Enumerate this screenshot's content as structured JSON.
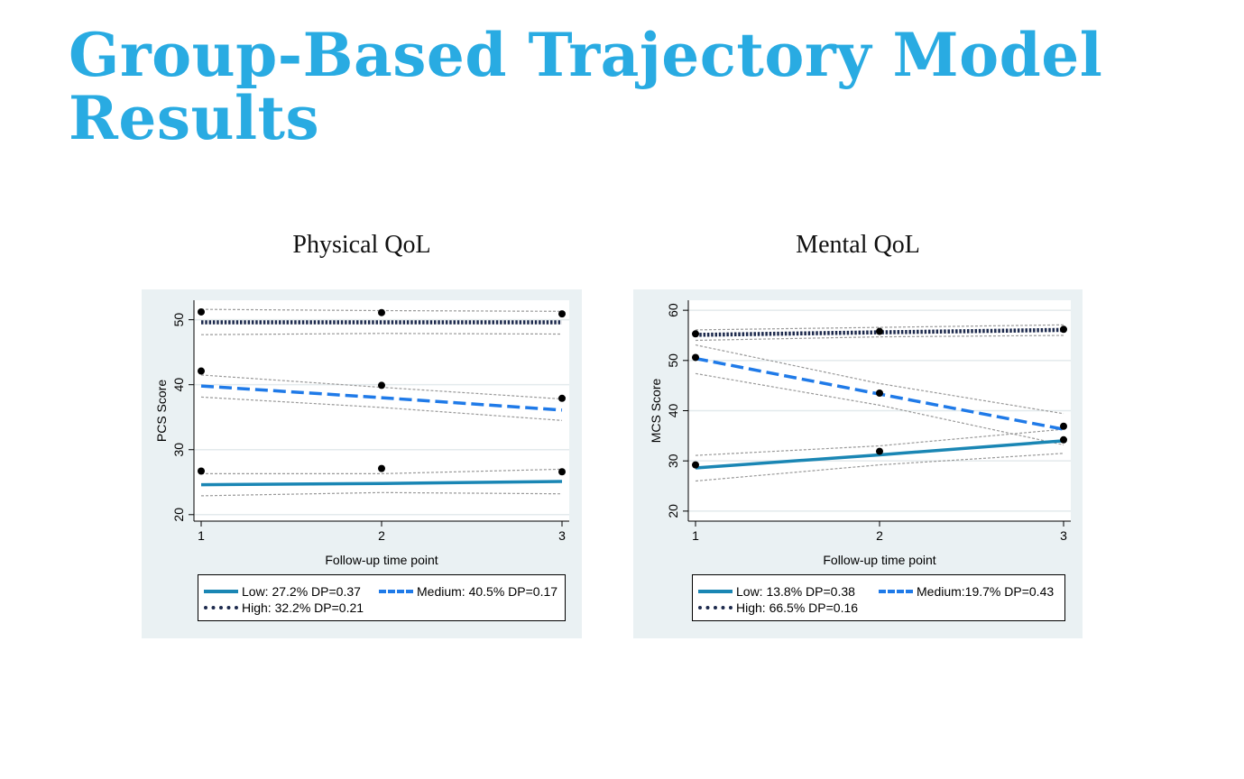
{
  "page": {
    "title": "Group-Based Trajectory Model Results"
  },
  "colors": {
    "title": "#29abe2",
    "low": "#1a86b4",
    "medium": "#1f7ae8",
    "high": "#1d2a4d",
    "ci": "#999999",
    "point": "#000000",
    "panel_bg": "#eaf1f3"
  },
  "chart_data": [
    {
      "type": "line",
      "title": "Physical QoL",
      "xlabel": "Follow-up time point",
      "ylabel": "PCS Score",
      "x": [
        1,
        2,
        3
      ],
      "xticks": [
        1,
        2,
        3
      ],
      "yticks": [
        20,
        30,
        40,
        50
      ],
      "xlim": [
        1,
        3
      ],
      "ylim": [
        19,
        53
      ],
      "grid": true,
      "legend": {
        "placement": "bottom",
        "labels": [
          "Low: 27.2% DP=0.37",
          "Medium: 40.5% DP=0.17",
          "High: 32.2% DP=0.21"
        ]
      },
      "series": [
        {
          "name": "Low: 27.2% DP=0.37",
          "style": "solid",
          "fitted": [
            24.6,
            24.8,
            25.1
          ],
          "ci_lower": [
            22.9,
            23.4,
            23.2
          ],
          "ci_upper": [
            26.3,
            26.3,
            27.0
          ],
          "observed": [
            26.7,
            27.1,
            26.6
          ]
        },
        {
          "name": "Medium: 40.5% DP=0.17",
          "style": "dashed",
          "fitted": [
            39.8,
            38.0,
            36.1
          ],
          "ci_lower": [
            38.1,
            36.5,
            34.5
          ],
          "ci_upper": [
            41.5,
            39.6,
            37.8
          ],
          "observed": [
            42.1,
            39.9,
            37.9
          ]
        },
        {
          "name": "High: 32.2% DP=0.21",
          "style": "dotted",
          "fitted": [
            49.6,
            49.6,
            49.6
          ],
          "ci_lower": [
            47.7,
            47.9,
            47.8
          ],
          "ci_upper": [
            51.6,
            51.4,
            51.3
          ],
          "observed": [
            51.2,
            51.1,
            50.9
          ]
        }
      ]
    },
    {
      "type": "line",
      "title": "Mental QoL",
      "xlabel": "Follow-up time point",
      "ylabel": "MCS Score",
      "x": [
        1,
        2,
        3
      ],
      "xticks": [
        1,
        2,
        3
      ],
      "yticks": [
        20,
        30,
        40,
        50,
        60
      ],
      "xlim": [
        1,
        3
      ],
      "ylim": [
        18,
        62
      ],
      "grid": true,
      "legend": {
        "placement": "bottom",
        "labels": [
          "Low: 13.8% DP=0.38",
          "Medium:19.7% DP=0.43",
          "High: 66.5% DP=0.16"
        ]
      },
      "series": [
        {
          "name": "Low: 13.8% DP=0.38",
          "style": "solid",
          "fitted": [
            28.6,
            31.2,
            34.0
          ],
          "ci_lower": [
            26.0,
            29.2,
            31.5
          ],
          "ci_upper": [
            31.1,
            33.0,
            36.3
          ],
          "observed": [
            29.2,
            31.9,
            34.2
          ]
        },
        {
          "name": "Medium:19.7% DP=0.43",
          "style": "dashed",
          "fitted": [
            50.4,
            43.3,
            36.3
          ],
          "ci_lower": [
            47.4,
            41.1,
            33.2
          ],
          "ci_upper": [
            53.1,
            45.4,
            39.4
          ],
          "observed": [
            50.6,
            43.5,
            36.9
          ]
        },
        {
          "name": "High: 66.5% DP=0.16",
          "style": "dotted",
          "fitted": [
            55.1,
            55.6,
            56.1
          ],
          "ci_lower": [
            54.0,
            54.7,
            55.0
          ],
          "ci_upper": [
            56.1,
            56.6,
            57.1
          ],
          "observed": [
            55.3,
            55.8,
            56.2
          ]
        }
      ]
    }
  ]
}
